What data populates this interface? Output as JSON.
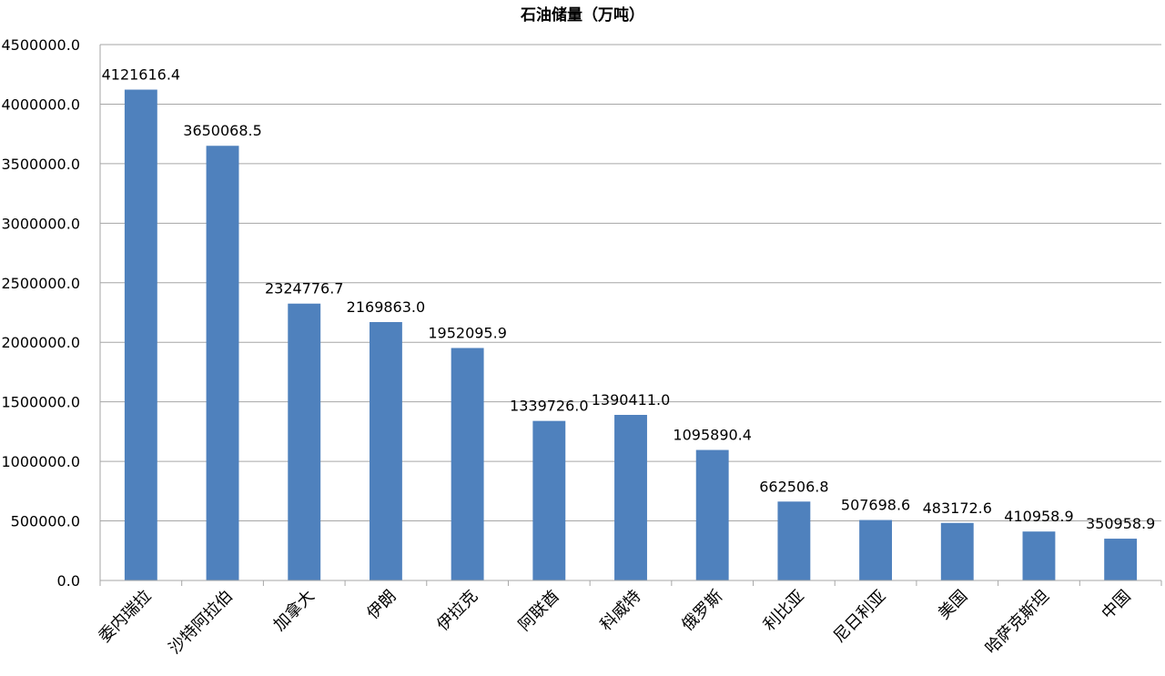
{
  "chart_data": {
    "type": "bar",
    "title": "石油储量（万吨）",
    "xlabel": "",
    "ylabel": "",
    "ylim": [
      0,
      4500000
    ],
    "y_ticks": [
      "0.0",
      "500000.0",
      "1000000.0",
      "1500000.0",
      "2000000.0",
      "2500000.0",
      "3000000.0",
      "3500000.0",
      "4000000.0",
      "4500000.0"
    ],
    "grid": "horizontal",
    "legend": "none",
    "bar_color": "#4F81BD",
    "grid_color": "#A6A6A6",
    "categories": [
      "委内瑞拉",
      "沙特阿拉伯",
      "加拿大",
      "伊朗",
      "伊拉克",
      "阿联酋",
      "科威特",
      "俄罗斯",
      "利比亚",
      "尼日利亚",
      "美国",
      "哈萨克斯坦",
      "中国"
    ],
    "values": [
      4121616.4,
      3650068.5,
      2324776.7,
      2169863.0,
      1952095.9,
      1339726.0,
      1390411.0,
      1095890.4,
      662506.8,
      507698.6,
      483172.6,
      410958.9,
      350958.9
    ],
    "data_labels": [
      "4121616.4",
      "3650068.5",
      "2324776.7",
      "2169863.0",
      "1952095.9",
      "1339726.0",
      "1390411.0",
      "1095890.4",
      "662506.8",
      "507698.6",
      "483172.6",
      "410958.9",
      "350958.9"
    ]
  }
}
